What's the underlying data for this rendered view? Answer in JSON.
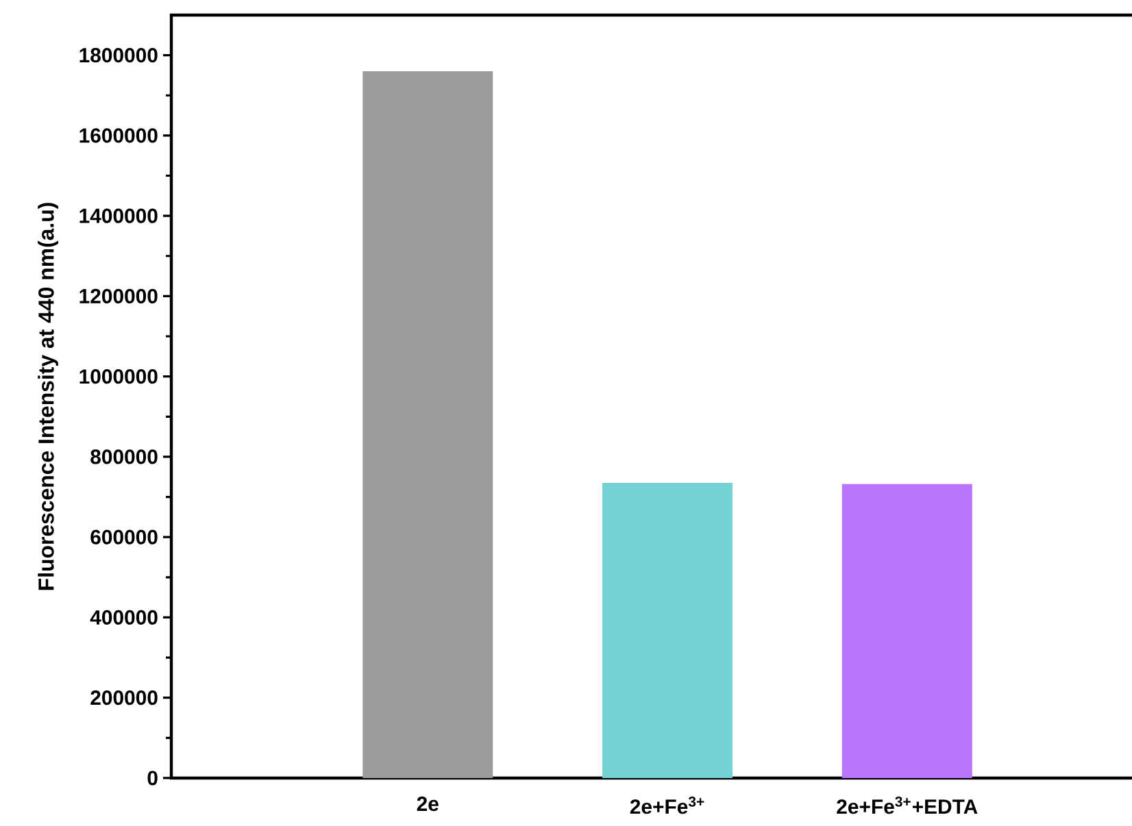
{
  "chart_data": {
    "type": "bar",
    "ylabel": "Fluorescence Intensity at 440 nm(a.u)",
    "categories": [
      "2e",
      "2e+Fe$^{3+}$",
      "2e+Fe$^{3+}$+EDTA"
    ],
    "values": [
      1760000,
      735000,
      732000
    ],
    "colors": [
      "#9c9c9c",
      "#74d2d4",
      "#b775fc"
    ],
    "ylim": [
      0,
      1900000
    ],
    "yticks": [
      0,
      200000,
      400000,
      600000,
      800000,
      1000000,
      1200000,
      1400000,
      1600000,
      1800000
    ],
    "grid": false
  }
}
